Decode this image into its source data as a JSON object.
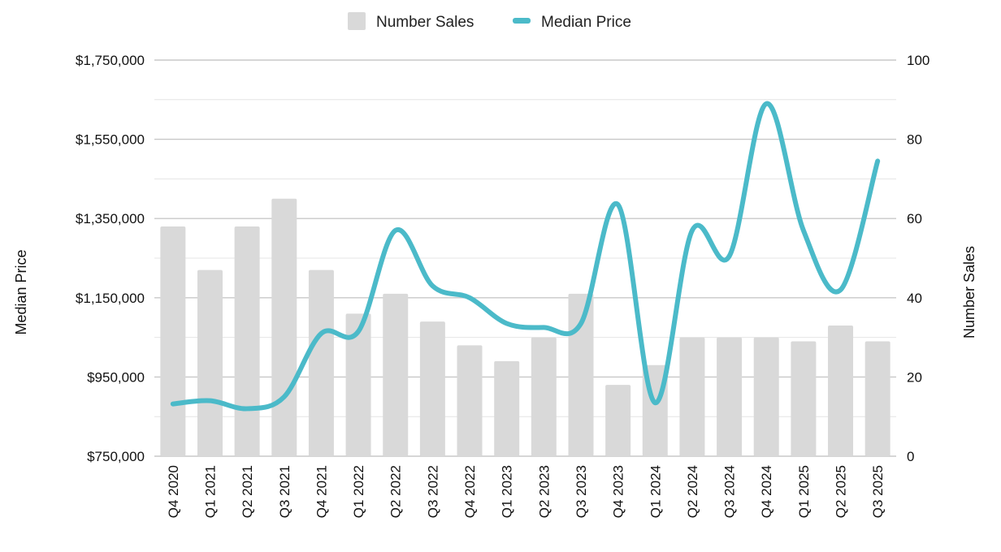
{
  "chart_data": {
    "type": "bar",
    "categories": [
      "Q4 2020",
      "Q1 2021",
      "Q2 2021",
      "Q3 2021",
      "Q4 2021",
      "Q1 2022",
      "Q2 2022",
      "Q3 2022",
      "Q4 2022",
      "Q1 2023",
      "Q2 2023",
      "Q3 2023",
      "Q4 2023",
      "Q1 2024",
      "Q2 2024",
      "Q3 2024",
      "Q4 2024",
      "Q1 2025",
      "Q2 2025",
      "Q3 2025"
    ],
    "series": [
      {
        "name": "Number Sales",
        "type": "bar",
        "axis": "right",
        "color": "#d9d9d9",
        "values": [
          58,
          47,
          58,
          65,
          47,
          36,
          41,
          34,
          28,
          24,
          30,
          41,
          18,
          23,
          30,
          30,
          30,
          29,
          33,
          29
        ]
      },
      {
        "name": "Median Price",
        "type": "line",
        "axis": "left",
        "smooth": true,
        "color": "#4bbac9",
        "values": [
          882000,
          890000,
          870000,
          900000,
          1060000,
          1065000,
          1320000,
          1180000,
          1150000,
          1085000,
          1075000,
          1085000,
          1385000,
          885000,
          1320000,
          1255000,
          1640000,
          1320000,
          1170000,
          1495000
        ]
      }
    ],
    "y_left": {
      "label": "Median Price",
      "min": 750000,
      "max": 1750000,
      "ticks": [
        "$750,000",
        "$950,000",
        "$1,150,000",
        "$1,350,000",
        "$1,550,000",
        "$1,750,000"
      ]
    },
    "y_right": {
      "label": "Number Sales",
      "min": 0,
      "max": 100,
      "ticks": [
        "0",
        "20",
        "40",
        "60",
        "80",
        "100"
      ]
    },
    "grid": true,
    "legend": "top-center",
    "legend_items": [
      "Number Sales",
      "Median Price"
    ]
  }
}
